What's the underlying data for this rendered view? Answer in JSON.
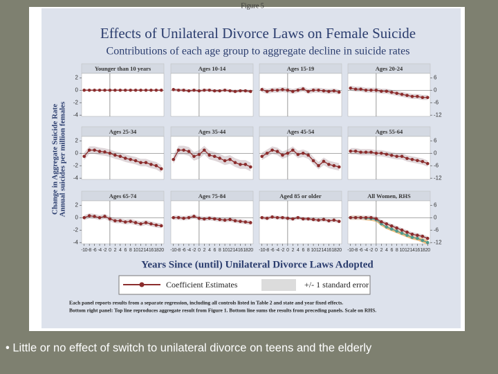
{
  "figure": {
    "label": "Figure 5",
    "title": "Effects of Unilateral Divorce Laws on Female Suicide",
    "subtitle": "Contributions of each age group to aggregate decline in suicide rates",
    "y_label": [
      "Change in Aggregate Suicide Rate",
      "Annual suicides per million females"
    ],
    "x_label": "Years Since (until) Unilateral Divorce Laws Adopted",
    "legend": [
      "Coefficient Estimates",
      "+/- 1 standard error"
    ],
    "notes": [
      "Each panel reports results from a separate regression, including all controls listed in Table 2 and state and year fixed effects.",
      "Bottom right panel: Top line reproduces aggregate result from Figure 1. Bottom line sums the results from preceding panels. Scale on RHS."
    ]
  },
  "slide": {
    "bullet": "• Little or no effect of switch to unilateral divorce on teens and the elderly"
  },
  "chart_data": [
    {
      "type": "line",
      "title": "Younger than 10 years",
      "x": [
        -10,
        -8,
        -6,
        -4,
        -2,
        0,
        2,
        4,
        6,
        8,
        10,
        12,
        14,
        16,
        18,
        20
      ],
      "xlim": [
        -11,
        21
      ],
      "ylim": [
        -4.2,
        2.7
      ],
      "yticks": [
        2,
        0,
        -2,
        -4
      ],
      "yticks_side": "left",
      "series": [
        {
          "color": "#8b2c2c",
          "band_color": "#d9cfd2",
          "se": 0.15,
          "values": [
            0,
            0,
            0,
            0,
            0,
            0,
            0,
            0,
            0,
            0,
            0,
            0,
            0,
            0,
            0,
            0
          ]
        }
      ]
    },
    {
      "type": "line",
      "title": "Ages 10-14",
      "x": [
        -10,
        -8,
        -6,
        -4,
        -2,
        0,
        2,
        4,
        6,
        8,
        10,
        12,
        14,
        16,
        18,
        20
      ],
      "xlim": [
        -11,
        21
      ],
      "ylim": [
        -4.2,
        2.7
      ],
      "series": [
        {
          "color": "#8b2c2c",
          "band_color": "#d9cfd2",
          "se": 0.25,
          "values": [
            0.1,
            0,
            0,
            -0.1,
            0,
            -0.1,
            0,
            0,
            -0.1,
            -0.1,
            0,
            -0.1,
            -0.2,
            -0.1,
            -0.1,
            -0.2
          ]
        }
      ]
    },
    {
      "type": "line",
      "title": "Ages 15-19",
      "x": [
        -10,
        -8,
        -6,
        -4,
        -2,
        0,
        2,
        4,
        6,
        8,
        10,
        12,
        14,
        16,
        18,
        20
      ],
      "xlim": [
        -11,
        21
      ],
      "ylim": [
        -4.2,
        2.7
      ],
      "series": [
        {
          "color": "#8b2c2c",
          "band_color": "#d9cfd2",
          "se": 0.4,
          "values": [
            0.1,
            -0.2,
            0,
            0,
            0.1,
            0,
            -0.2,
            0,
            0.2,
            -0.2,
            0,
            0,
            -0.1,
            -0.2,
            -0.1,
            -0.3
          ]
        }
      ]
    },
    {
      "type": "line",
      "title": "Ages 20-24",
      "x": [
        -10,
        -8,
        -6,
        -4,
        -2,
        0,
        2,
        4,
        6,
        8,
        10,
        12,
        14,
        16,
        18,
        20
      ],
      "xlim": [
        -11,
        21
      ],
      "ylim": [
        -12.6,
        8.1
      ],
      "yticks": [
        6,
        0,
        -6,
        -12
      ],
      "yticks_side": "right",
      "series": [
        {
          "color": "#8b2c2c",
          "band_color": "#d9cfd2",
          "se": 1.2,
          "values": [
            1,
            0.5,
            0.5,
            0,
            0,
            0,
            -0.5,
            -0.5,
            -1,
            -1.5,
            -2,
            -2.5,
            -3,
            -3,
            -3.5,
            -3.5
          ]
        }
      ]
    },
    {
      "type": "line",
      "title": "Ages 25-34",
      "x": [
        -10,
        -8,
        -6,
        -4,
        -2,
        0,
        2,
        4,
        6,
        8,
        10,
        12,
        14,
        16,
        18,
        20
      ],
      "xlim": [
        -11,
        21
      ],
      "ylim": [
        -4.2,
        2.7
      ],
      "yticks": [
        2,
        0,
        -2,
        -4
      ],
      "yticks_side": "left",
      "series": [
        {
          "color": "#8b2c2c",
          "band_color": "#d9cfd2",
          "se": 0.6,
          "values": [
            -0.5,
            0.5,
            0.5,
            0.3,
            0.2,
            0,
            -0.3,
            -0.5,
            -0.8,
            -1,
            -1.2,
            -1.5,
            -1.5,
            -1.8,
            -2,
            -2.5
          ]
        }
      ]
    },
    {
      "type": "line",
      "title": "Ages 35-44",
      "x": [
        -10,
        -8,
        -6,
        -4,
        -2,
        0,
        2,
        4,
        6,
        8,
        10,
        12,
        14,
        16,
        18,
        20
      ],
      "xlim": [
        -11,
        21
      ],
      "ylim": [
        -4.2,
        2.7
      ],
      "series": [
        {
          "color": "#8b2c2c",
          "band_color": "#d9cfd2",
          "se": 0.7,
          "values": [
            -1,
            0.5,
            0.5,
            0.3,
            -0.5,
            -0.2,
            0.5,
            -0.3,
            -0.5,
            -0.8,
            -1.2,
            -1,
            -1.5,
            -1.8,
            -1.8,
            -2.2
          ]
        }
      ]
    },
    {
      "type": "line",
      "title": "Ages 45-54",
      "x": [
        -10,
        -8,
        -6,
        -4,
        -2,
        0,
        2,
        4,
        6,
        8,
        10,
        12,
        14,
        16,
        18,
        20
      ],
      "xlim": [
        -11,
        21
      ],
      "ylim": [
        -4.2,
        2.7
      ],
      "series": [
        {
          "color": "#8b2c2c",
          "band_color": "#d9cfd2",
          "se": 0.6,
          "values": [
            -0.5,
            0,
            0.5,
            0.3,
            -0.3,
            0,
            0.5,
            -0.2,
            0,
            -0.3,
            -1.2,
            -2,
            -1.3,
            -1.8,
            -2,
            -2.2
          ]
        }
      ]
    },
    {
      "type": "line",
      "title": "Ages 55-64",
      "x": [
        -10,
        -8,
        -6,
        -4,
        -2,
        0,
        2,
        4,
        6,
        8,
        10,
        12,
        14,
        16,
        18,
        20
      ],
      "xlim": [
        -11,
        21
      ],
      "ylim": [
        -12.6,
        8.1
      ],
      "yticks": [
        6,
        0,
        -6,
        -12
      ],
      "yticks_side": "right",
      "series": [
        {
          "color": "#8b2c2c",
          "band_color": "#d9cfd2",
          "se": 1.5,
          "values": [
            1,
            1,
            0.5,
            0.5,
            0.5,
            0,
            0,
            -0.5,
            -1,
            -1.5,
            -1.5,
            -2.5,
            -3,
            -3.5,
            -4,
            -5
          ]
        }
      ]
    },
    {
      "type": "line",
      "title": "Ages 65-74",
      "x": [
        -10,
        -8,
        -6,
        -4,
        -2,
        0,
        2,
        4,
        6,
        8,
        10,
        12,
        14,
        16,
        18,
        20
      ],
      "xlim": [
        -11,
        21
      ],
      "ylim": [
        -4.2,
        2.7
      ],
      "yticks": [
        2,
        0,
        -2,
        -4
      ],
      "yticks_side": "left",
      "xticks": [
        -10,
        -8,
        -6,
        -4,
        -2,
        0,
        2,
        4,
        6,
        8,
        10,
        12,
        14,
        16,
        18,
        20
      ],
      "series": [
        {
          "color": "#8b2c2c",
          "band_color": "#d9cfd2",
          "se": 0.4,
          "values": [
            0,
            0.3,
            0.2,
            0,
            0.2,
            -0.2,
            -0.5,
            -0.5,
            -0.7,
            -0.6,
            -0.8,
            -1,
            -0.8,
            -1,
            -1.2,
            -1.3
          ]
        }
      ]
    },
    {
      "type": "line",
      "title": "Ages 75-84",
      "x": [
        -10,
        -8,
        -6,
        -4,
        -2,
        0,
        2,
        4,
        6,
        8,
        10,
        12,
        14,
        16,
        18,
        20
      ],
      "xlim": [
        -11,
        21
      ],
      "ylim": [
        -4.2,
        2.7
      ],
      "xticks": [
        -10,
        -8,
        -6,
        -4,
        -2,
        0,
        2,
        4,
        6,
        8,
        10,
        12,
        14,
        16,
        18,
        20
      ],
      "series": [
        {
          "color": "#8b2c2c",
          "band_color": "#d9cfd2",
          "se": 0.35,
          "values": [
            0,
            0,
            -0.1,
            0,
            0.2,
            -0.1,
            -0.2,
            -0.1,
            -0.2,
            -0.3,
            -0.4,
            -0.3,
            -0.5,
            -0.6,
            -0.7,
            -0.8
          ]
        }
      ]
    },
    {
      "type": "line",
      "title": "Aged 85 or older",
      "x": [
        -10,
        -8,
        -6,
        -4,
        -2,
        0,
        2,
        4,
        6,
        8,
        10,
        12,
        14,
        16,
        18,
        20
      ],
      "xlim": [
        -11,
        21
      ],
      "ylim": [
        -4.2,
        2.7
      ],
      "xticks": [
        -10,
        -8,
        -6,
        -4,
        -2,
        0,
        2,
        4,
        6,
        8,
        10,
        12,
        14,
        16,
        18,
        20
      ],
      "series": [
        {
          "color": "#8b2c2c",
          "band_color": "#d9cfd2",
          "se": 0.3,
          "values": [
            0,
            -0.1,
            0.1,
            0,
            0,
            -0.1,
            -0.2,
            0,
            -0.2,
            -0.2,
            -0.3,
            -0.4,
            -0.3,
            -0.5,
            -0.4,
            -0.6
          ]
        }
      ]
    },
    {
      "type": "line",
      "title": "All Women, RHS",
      "x": [
        -10,
        -8,
        -6,
        -4,
        -2,
        0,
        2,
        4,
        6,
        8,
        10,
        12,
        14,
        16,
        18,
        20
      ],
      "xlim": [
        -11,
        21
      ],
      "ylim": [
        -12.6,
        8.1
      ],
      "yticks": [
        6,
        0,
        -6,
        -12
      ],
      "yticks_side": "right",
      "xticks": [
        -10,
        -8,
        -6,
        -4,
        -2,
        0,
        2,
        4,
        6,
        8,
        10,
        12,
        14,
        16,
        18,
        20
      ],
      "series": [
        {
          "color": "#4e9a8e",
          "band_color": "#f0b36a",
          "se": 1,
          "values": [
            0,
            0,
            0,
            -0.3,
            -0.5,
            -1,
            -3,
            -4.5,
            -5.5,
            -6.5,
            -7.5,
            -8.5,
            -9.5,
            -10,
            -11,
            -12
          ]
        },
        {
          "color": "#8b2c2c",
          "band_color": "#d9cfd2",
          "se": 1,
          "values": [
            0,
            0,
            0,
            0,
            0,
            -0.5,
            -2,
            -3,
            -4,
            -5,
            -6,
            -7,
            -8,
            -8.5,
            -9,
            -10
          ]
        }
      ]
    }
  ]
}
